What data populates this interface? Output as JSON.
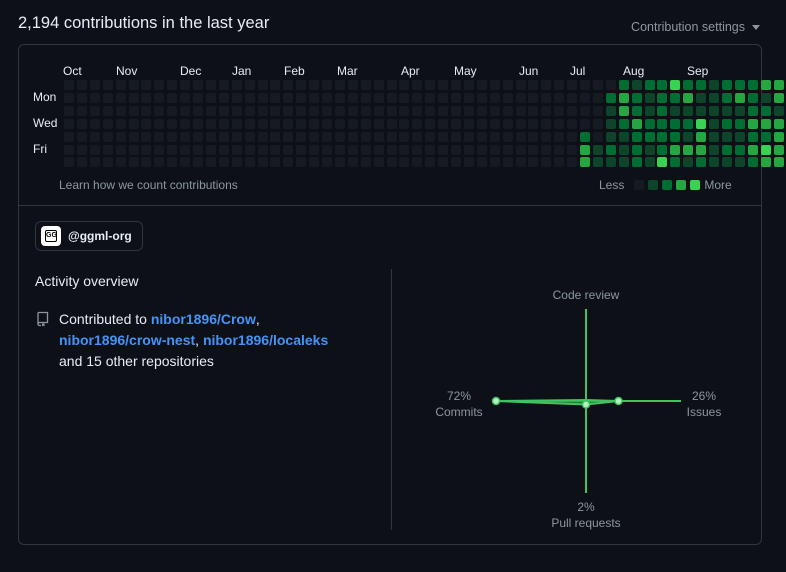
{
  "header": {
    "title": "2,194 contributions in the last year",
    "settings_label": "Contribution settings"
  },
  "calendar": {
    "months": [
      "Oct",
      "Nov",
      "Dec",
      "Jan",
      "Feb",
      "Mar",
      "Apr",
      "May",
      "Jun",
      "Jul",
      "Aug",
      "Sep"
    ],
    "days": [
      "Mon",
      "Wed",
      "Fri"
    ],
    "learn_link": "Learn how we count contributions",
    "legend_less": "Less",
    "legend_more": "More",
    "colors": [
      "#161b22",
      "#0e4429",
      "#006d32",
      "#26a641",
      "#39d353"
    ],
    "weeks": [
      [
        0,
        0,
        0,
        0,
        0,
        0,
        0
      ],
      [
        0,
        0,
        0,
        0,
        0,
        0,
        0
      ],
      [
        0,
        0,
        0,
        0,
        0,
        0,
        0
      ],
      [
        0,
        0,
        0,
        0,
        0,
        0,
        0
      ],
      [
        0,
        0,
        0,
        0,
        0,
        0,
        0
      ],
      [
        0,
        0,
        0,
        0,
        0,
        0,
        0
      ],
      [
        0,
        0,
        0,
        0,
        0,
        0,
        0
      ],
      [
        0,
        0,
        0,
        0,
        0,
        0,
        0
      ],
      [
        0,
        0,
        0,
        0,
        0,
        0,
        0
      ],
      [
        0,
        0,
        0,
        0,
        0,
        0,
        0
      ],
      [
        0,
        0,
        0,
        0,
        0,
        0,
        0
      ],
      [
        0,
        0,
        0,
        0,
        0,
        0,
        0
      ],
      [
        0,
        0,
        0,
        0,
        0,
        0,
        0
      ],
      [
        0,
        0,
        0,
        0,
        0,
        0,
        0
      ],
      [
        0,
        0,
        0,
        0,
        0,
        0,
        0
      ],
      [
        0,
        0,
        0,
        0,
        0,
        0,
        0
      ],
      [
        0,
        0,
        0,
        0,
        0,
        0,
        0
      ],
      [
        0,
        0,
        0,
        0,
        0,
        0,
        0
      ],
      [
        0,
        0,
        0,
        0,
        0,
        0,
        0
      ],
      [
        0,
        0,
        0,
        0,
        0,
        0,
        0
      ],
      [
        0,
        0,
        0,
        0,
        0,
        0,
        0
      ],
      [
        0,
        0,
        0,
        0,
        0,
        0,
        0
      ],
      [
        0,
        0,
        0,
        0,
        0,
        0,
        0
      ],
      [
        0,
        0,
        0,
        0,
        0,
        0,
        0
      ],
      [
        0,
        0,
        0,
        0,
        0,
        0,
        0
      ],
      [
        0,
        0,
        0,
        0,
        0,
        0,
        0
      ],
      [
        0,
        0,
        0,
        0,
        0,
        0,
        0
      ],
      [
        0,
        0,
        0,
        0,
        0,
        0,
        0
      ],
      [
        0,
        0,
        0,
        0,
        0,
        0,
        0
      ],
      [
        0,
        0,
        0,
        0,
        0,
        0,
        0
      ],
      [
        0,
        0,
        0,
        0,
        0,
        0,
        0
      ],
      [
        0,
        0,
        0,
        0,
        0,
        0,
        0
      ],
      [
        0,
        0,
        0,
        0,
        0,
        0,
        0
      ],
      [
        0,
        0,
        0,
        0,
        0,
        0,
        0
      ],
      [
        0,
        0,
        0,
        0,
        0,
        0,
        0
      ],
      [
        0,
        0,
        0,
        0,
        0,
        0,
        0
      ],
      [
        0,
        0,
        0,
        0,
        0,
        0,
        0
      ],
      [
        0,
        0,
        0,
        0,
        0,
        0,
        0
      ],
      [
        0,
        0,
        0,
        0,
        0,
        0,
        0
      ],
      [
        0,
        0,
        0,
        0,
        0,
        0,
        0
      ],
      [
        0,
        0,
        0,
        0,
        2,
        3,
        3
      ],
      [
        0,
        0,
        0,
        0,
        0,
        1,
        1
      ],
      [
        0,
        2,
        1,
        1,
        1,
        2,
        1
      ],
      [
        2,
        3,
        3,
        2,
        1,
        1,
        1
      ],
      [
        1,
        2,
        2,
        3,
        2,
        2,
        2
      ],
      [
        2,
        1,
        1,
        2,
        2,
        1,
        1
      ],
      [
        2,
        2,
        2,
        2,
        2,
        2,
        4
      ],
      [
        4,
        2,
        1,
        2,
        2,
        3,
        2
      ],
      [
        2,
        3,
        1,
        2,
        1,
        3,
        1
      ],
      [
        2,
        1,
        1,
        4,
        3,
        3,
        2
      ],
      [
        1,
        1,
        1,
        1,
        1,
        1,
        1
      ],
      [
        2,
        2,
        1,
        2,
        1,
        2,
        1
      ],
      [
        2,
        3,
        1,
        2,
        1,
        2,
        1
      ],
      [
        2,
        2,
        2,
        3,
        2,
        3,
        2
      ],
      [
        3,
        1,
        2,
        3,
        2,
        4,
        3
      ],
      [
        3,
        3,
        1,
        3,
        3,
        3,
        3
      ],
      [
        4,
        1,
        4,
        1,
        4,
        1,
        3
      ]
    ]
  },
  "org": {
    "name": "@ggml-org"
  },
  "activity": {
    "title": "Activity overview",
    "contributed_prefix": "Contributed to ",
    "repos": [
      "nibor1896/Crow",
      "nibor1896/crow-nest",
      "nibor1896/localeks"
    ],
    "sep1": ",",
    "sep2": ",",
    "others": "and 15 other repositories"
  },
  "radar": {
    "code_review_label": "Code review",
    "commits_pct": "72%",
    "commits_label": "Commits",
    "issues_pct": "26%",
    "issues_label": "Issues",
    "pr_pct": "2%",
    "pr_label": "Pull requests",
    "values": {
      "commits": 72,
      "issues": 26,
      "pull_requests": 2,
      "code_review": 0
    },
    "accent": "#40c463",
    "fill": "#26a641"
  }
}
